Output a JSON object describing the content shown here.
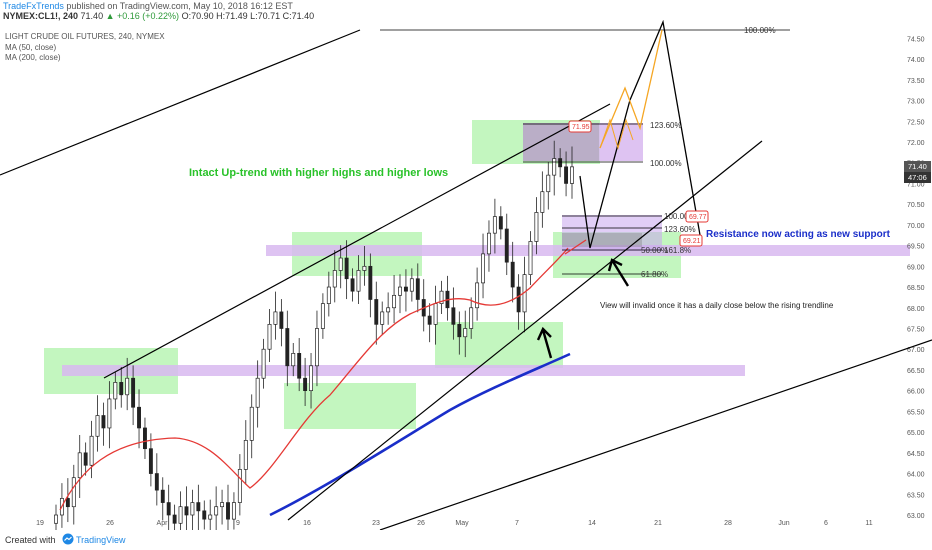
{
  "header": {
    "publisher": "TradeFxTrends",
    "published_text": "published on TradingView.com, May 10, 2018 16:12 EST",
    "symbol": "NYMEX:CL1!, 240",
    "last": "71.40",
    "change": "▲ +0.16 (+0.22%)",
    "ohlc": "O:70.90 H:71.49 L:70.71 C:71.40"
  },
  "legend": {
    "title": "LIGHT CRUDE OIL FUTURES, 240, NYMEX",
    "ma50": "MA (50, close)",
    "ma200": "MA (200, close)"
  },
  "footer": {
    "created": "Created with",
    "brand": "TradingView"
  },
  "colors": {
    "up_candle": "#222222",
    "ma50": "#e53935",
    "ma200": "#1a2ec9",
    "trendline": "#000000",
    "green_zone": "#b9f5b4",
    "purple_zone": "#d8b8f0",
    "projection_orange": "#f5a623",
    "annotation_text": "#29c229",
    "support_text": "#1a2ec9"
  },
  "chart_data": {
    "type": "candlestick",
    "x_tick_labels": [
      "19",
      "26",
      "Apr",
      "9",
      "16",
      "23",
      "26",
      "May",
      "7",
      "14",
      "21",
      "28",
      "Jun",
      "6",
      "11"
    ],
    "y_tick_labels": [
      "63.00",
      "63.50",
      "64.00",
      "64.50",
      "65.00",
      "65.50",
      "66.00",
      "66.50",
      "67.00",
      "67.50",
      "68.00",
      "68.50",
      "69.00",
      "69.50",
      "70.00",
      "70.50",
      "71.00",
      "71.50",
      "72.00",
      "72.50",
      "73.00",
      "73.50",
      "74.00",
      "74.50"
    ],
    "ylim": [
      63.0,
      74.75
    ],
    "price_badges": [
      "71.40",
      "47:06"
    ],
    "fib_labels": [
      "100.00%",
      "123.60%",
      "100.00%",
      "100.00%",
      "123.60%",
      "50.00%",
      "161.8%",
      "61.80%"
    ],
    "level_badges": [
      "71.95",
      "69.77",
      "69.21"
    ],
    "annotations": {
      "uptrend": "Intact Up-trend with higher highs and higher lows",
      "support": "Resistance now acting as new support",
      "invalid": "View will invalid once it has a daily close below the rising trendline"
    },
    "series": [
      {
        "name": "MA (50, close)"
      },
      {
        "name": "MA (200, close)"
      }
    ],
    "closes": [
      63.0,
      63.4,
      63.2,
      63.9,
      64.5,
      64.2,
      64.9,
      65.4,
      65.1,
      65.8,
      66.2,
      65.9,
      66.3,
      65.6,
      65.1,
      64.6,
      64.0,
      63.6,
      63.3,
      63.0,
      62.8,
      63.2,
      63.0,
      63.3,
      63.1,
      62.9,
      63.0,
      63.2,
      63.3,
      62.9,
      63.3,
      64.1,
      64.8,
      65.6,
      66.3,
      67.0,
      67.6,
      67.9,
      67.5,
      66.6,
      66.9,
      66.3,
      66.0,
      66.6,
      67.5,
      68.1,
      68.5,
      68.9,
      69.2,
      68.7,
      68.4,
      68.9,
      69.0,
      68.2,
      67.6,
      67.9,
      68.0,
      68.3,
      68.5,
      68.4,
      68.7,
      68.2,
      67.8,
      67.6,
      68.1,
      68.4,
      68.0,
      67.6,
      67.3,
      67.5,
      68.0,
      68.6,
      69.3,
      69.8,
      70.2,
      69.9,
      69.1,
      68.5,
      67.9,
      68.8,
      69.6,
      70.3,
      70.8,
      71.2,
      71.6,
      71.4,
      71.0,
      71.4
    ]
  }
}
